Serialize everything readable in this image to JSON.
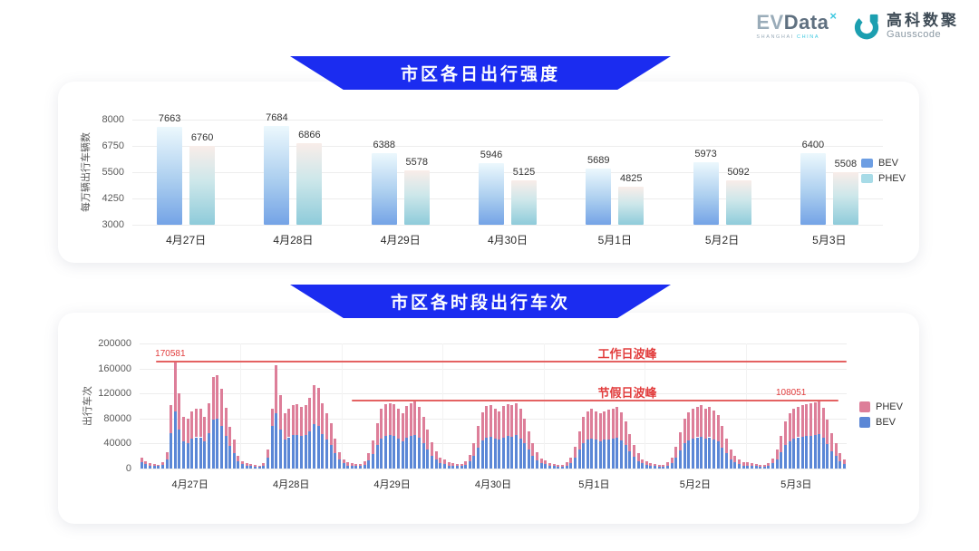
{
  "header": {
    "evdata": {
      "ev": "EV",
      "data": "Data",
      "sup": "×",
      "sub_left": "SHANGHAI",
      "sub_right": "CHINA"
    },
    "gausscode": {
      "cn": "高科数聚",
      "en": "Gausscode"
    }
  },
  "colors": {
    "banner_blue": "#1b2cf0",
    "bev_gradient": [
      "#74a3e6",
      "#abceef",
      "#ecf8fd"
    ],
    "phev_gradient": [
      "#8ecbda",
      "#cde7ea",
      "#f9ede9"
    ],
    "legend_bev": "#6d9ee3",
    "legend_phev": "#a7dbe7",
    "bev_solid": "#5b87d6",
    "phev_solid": "#dd7e99",
    "annotation_red": "#e23d3d"
  },
  "chart_data": [
    {
      "type": "bar",
      "title": "市区各日出行强度",
      "ylabel": "每万辆出行车辆数",
      "ylim": [
        3000,
        8000
      ],
      "yticks": [
        3000,
        4250,
        5500,
        6750,
        8000
      ],
      "grid": true,
      "legend_position": "right",
      "categories": [
        "4月27日",
        "4月28日",
        "4月29日",
        "4月30日",
        "5月1日",
        "5月2日",
        "5月3日"
      ],
      "series": [
        {
          "name": "BEV",
          "swatch": "#6d9ee3",
          "values": [
            7663,
            7684,
            6388,
            5946,
            5689,
            5973,
            6400
          ]
        },
        {
          "name": "PHEV",
          "swatch": "#a7dbe7",
          "values": [
            6760,
            6866,
            5578,
            5125,
            4825,
            5092,
            5508
          ]
        }
      ]
    },
    {
      "type": "bar",
      "stacked": true,
      "title": "市区各时段出行车次",
      "ylabel": "出行车次",
      "ylim": [
        0,
        200000
      ],
      "yticks": [
        0,
        40000,
        80000,
        120000,
        160000,
        200000
      ],
      "grid": true,
      "legend_position": "right",
      "legend_order": [
        "PHEV",
        "BEV"
      ],
      "bars_per_day": 24,
      "categories": [
        "4月27日",
        "4月28日",
        "4月29日",
        "4月30日",
        "5月1日",
        "5月2日",
        "5月3日"
      ],
      "series": [
        {
          "name": "BEV",
          "color": "#5b87d6",
          "values_by_day": [
            [
              10000,
              7000,
              5000,
              4000,
              4000,
              6000,
              15000,
              56000,
              91000,
              63000,
              43000,
              41000,
              48000,
              50000,
              50000,
              44000,
              56000,
              78000,
              80000,
              68000,
              52000,
              36000,
              25000,
              12000
            ],
            [
              7000,
              5000,
              4000,
              3000,
              3000,
              5000,
              17000,
              68000,
              88000,
              62000,
              46000,
              50000,
              53000,
              54000,
              52000,
              53000,
              59000,
              71000,
              68000,
              55000,
              47000,
              38000,
              25000,
              14000
            ],
            [
              8000,
              5000,
              4000,
              4000,
              4000,
              6000,
              13000,
              23000,
              37000,
              48000,
              52000,
              53000,
              52000,
              48000,
              44000,
              50000,
              52000,
              54000,
              49000,
              41000,
              31000,
              21000,
              14000,
              9000
            ],
            [
              7000,
              5000,
              4000,
              4000,
              4000,
              6000,
              11000,
              20000,
              34000,
              45000,
              50000,
              51000,
              48000,
              46000,
              50000,
              52000,
              51000,
              53000,
              48000,
              40000,
              30000,
              20000,
              13000,
              8000
            ],
            [
              7000,
              5000,
              4000,
              3000,
              3000,
              5000,
              9000,
              18000,
              30000,
              41000,
              46000,
              48000,
              46000,
              44000,
              46000,
              47000,
              48000,
              49000,
              45000,
              38000,
              28000,
              19000,
              12000,
              8000
            ],
            [
              6000,
              5000,
              4000,
              3000,
              3000,
              5000,
              9000,
              18000,
              29000,
              40000,
              45000,
              48000,
              50000,
              51000,
              48000,
              50000,
              47000,
              43000,
              34000,
              24000,
              15000,
              10000,
              7000,
              5000
            ],
            [
              5000,
              4000,
              4000,
              3000,
              3000,
              5000,
              8000,
              15000,
              26000,
              38000,
              44000,
              48000,
              50000,
              51000,
              52000,
              52000,
              53000,
              55000,
              49000,
              39000,
              28000,
              20000,
              12000,
              7000
            ]
          ]
        },
        {
          "name": "PHEV",
          "color": "#dd7e99",
          "values_by_day": [
            [
              8000,
              5000,
              3000,
              3000,
              2000,
              4000,
              11000,
              45000,
              79581,
              58000,
              39000,
              38000,
              44000,
              45000,
              46000,
              39000,
              49000,
              68000,
              69000,
              60000,
              45000,
              30000,
              21000,
              9000
            ],
            [
              5000,
              3000,
              3000,
              3000,
              2000,
              4000,
              13000,
              27000,
              77000,
              55000,
              42000,
              45000,
              48000,
              49000,
              47000,
              48000,
              54000,
              63000,
              61000,
              49000,
              41000,
              34000,
              23000,
              12000
            ],
            [
              7000,
              5000,
              4000,
              3000,
              3000,
              6000,
              12000,
              22000,
              35000,
              47000,
              51000,
              52000,
              51000,
              48000,
              44000,
              50000,
              52000,
              53000,
              49000,
              41000,
              31000,
              21000,
              14000,
              9000
            ],
            [
              7000,
              5000,
              4000,
              3000,
              3000,
              5000,
              11000,
              20000,
              34000,
              45000,
              50000,
              51000,
              48000,
              46000,
              50000,
              51000,
              50000,
              52000,
              48000,
              40000,
              30000,
              20000,
              13000,
              8000
            ],
            [
              6000,
              4000,
              3000,
              3000,
              3000,
              5000,
              9000,
              17000,
              30000,
              41000,
              46000,
              47000,
              45000,
              44000,
              46000,
              47000,
              48000,
              49000,
              45000,
              37000,
              27000,
              19000,
              12000,
              7000
            ],
            [
              6000,
              4000,
              3000,
              3000,
              3000,
              5000,
              9000,
              17000,
              29000,
              40000,
              45000,
              47000,
              49000,
              50000,
              48000,
              49000,
              46000,
              42000,
              34000,
              24000,
              15000,
              10000,
              7000,
              5000
            ],
            [
              5000,
              4000,
              3000,
              3000,
              3000,
              4000,
              8000,
              15000,
              26000,
              37000,
              44000,
              47000,
              49000,
              50000,
              51000,
              52000,
              53000,
              53051,
              48000,
              39000,
              28000,
              20000,
              12000,
              7000
            ]
          ]
        }
      ],
      "ref_lines": [
        {
          "label": "工作日波峰",
          "value": 170581,
          "x_start": 0.023,
          "x_end": 1.0,
          "peak_text": "170581",
          "peak_x": 0.022
        },
        {
          "label": "节假日波峰",
          "value": 108051,
          "x_start": 0.3,
          "x_end": 0.988,
          "peak_text": "108051",
          "peak_x": 0.9
        }
      ]
    }
  ]
}
